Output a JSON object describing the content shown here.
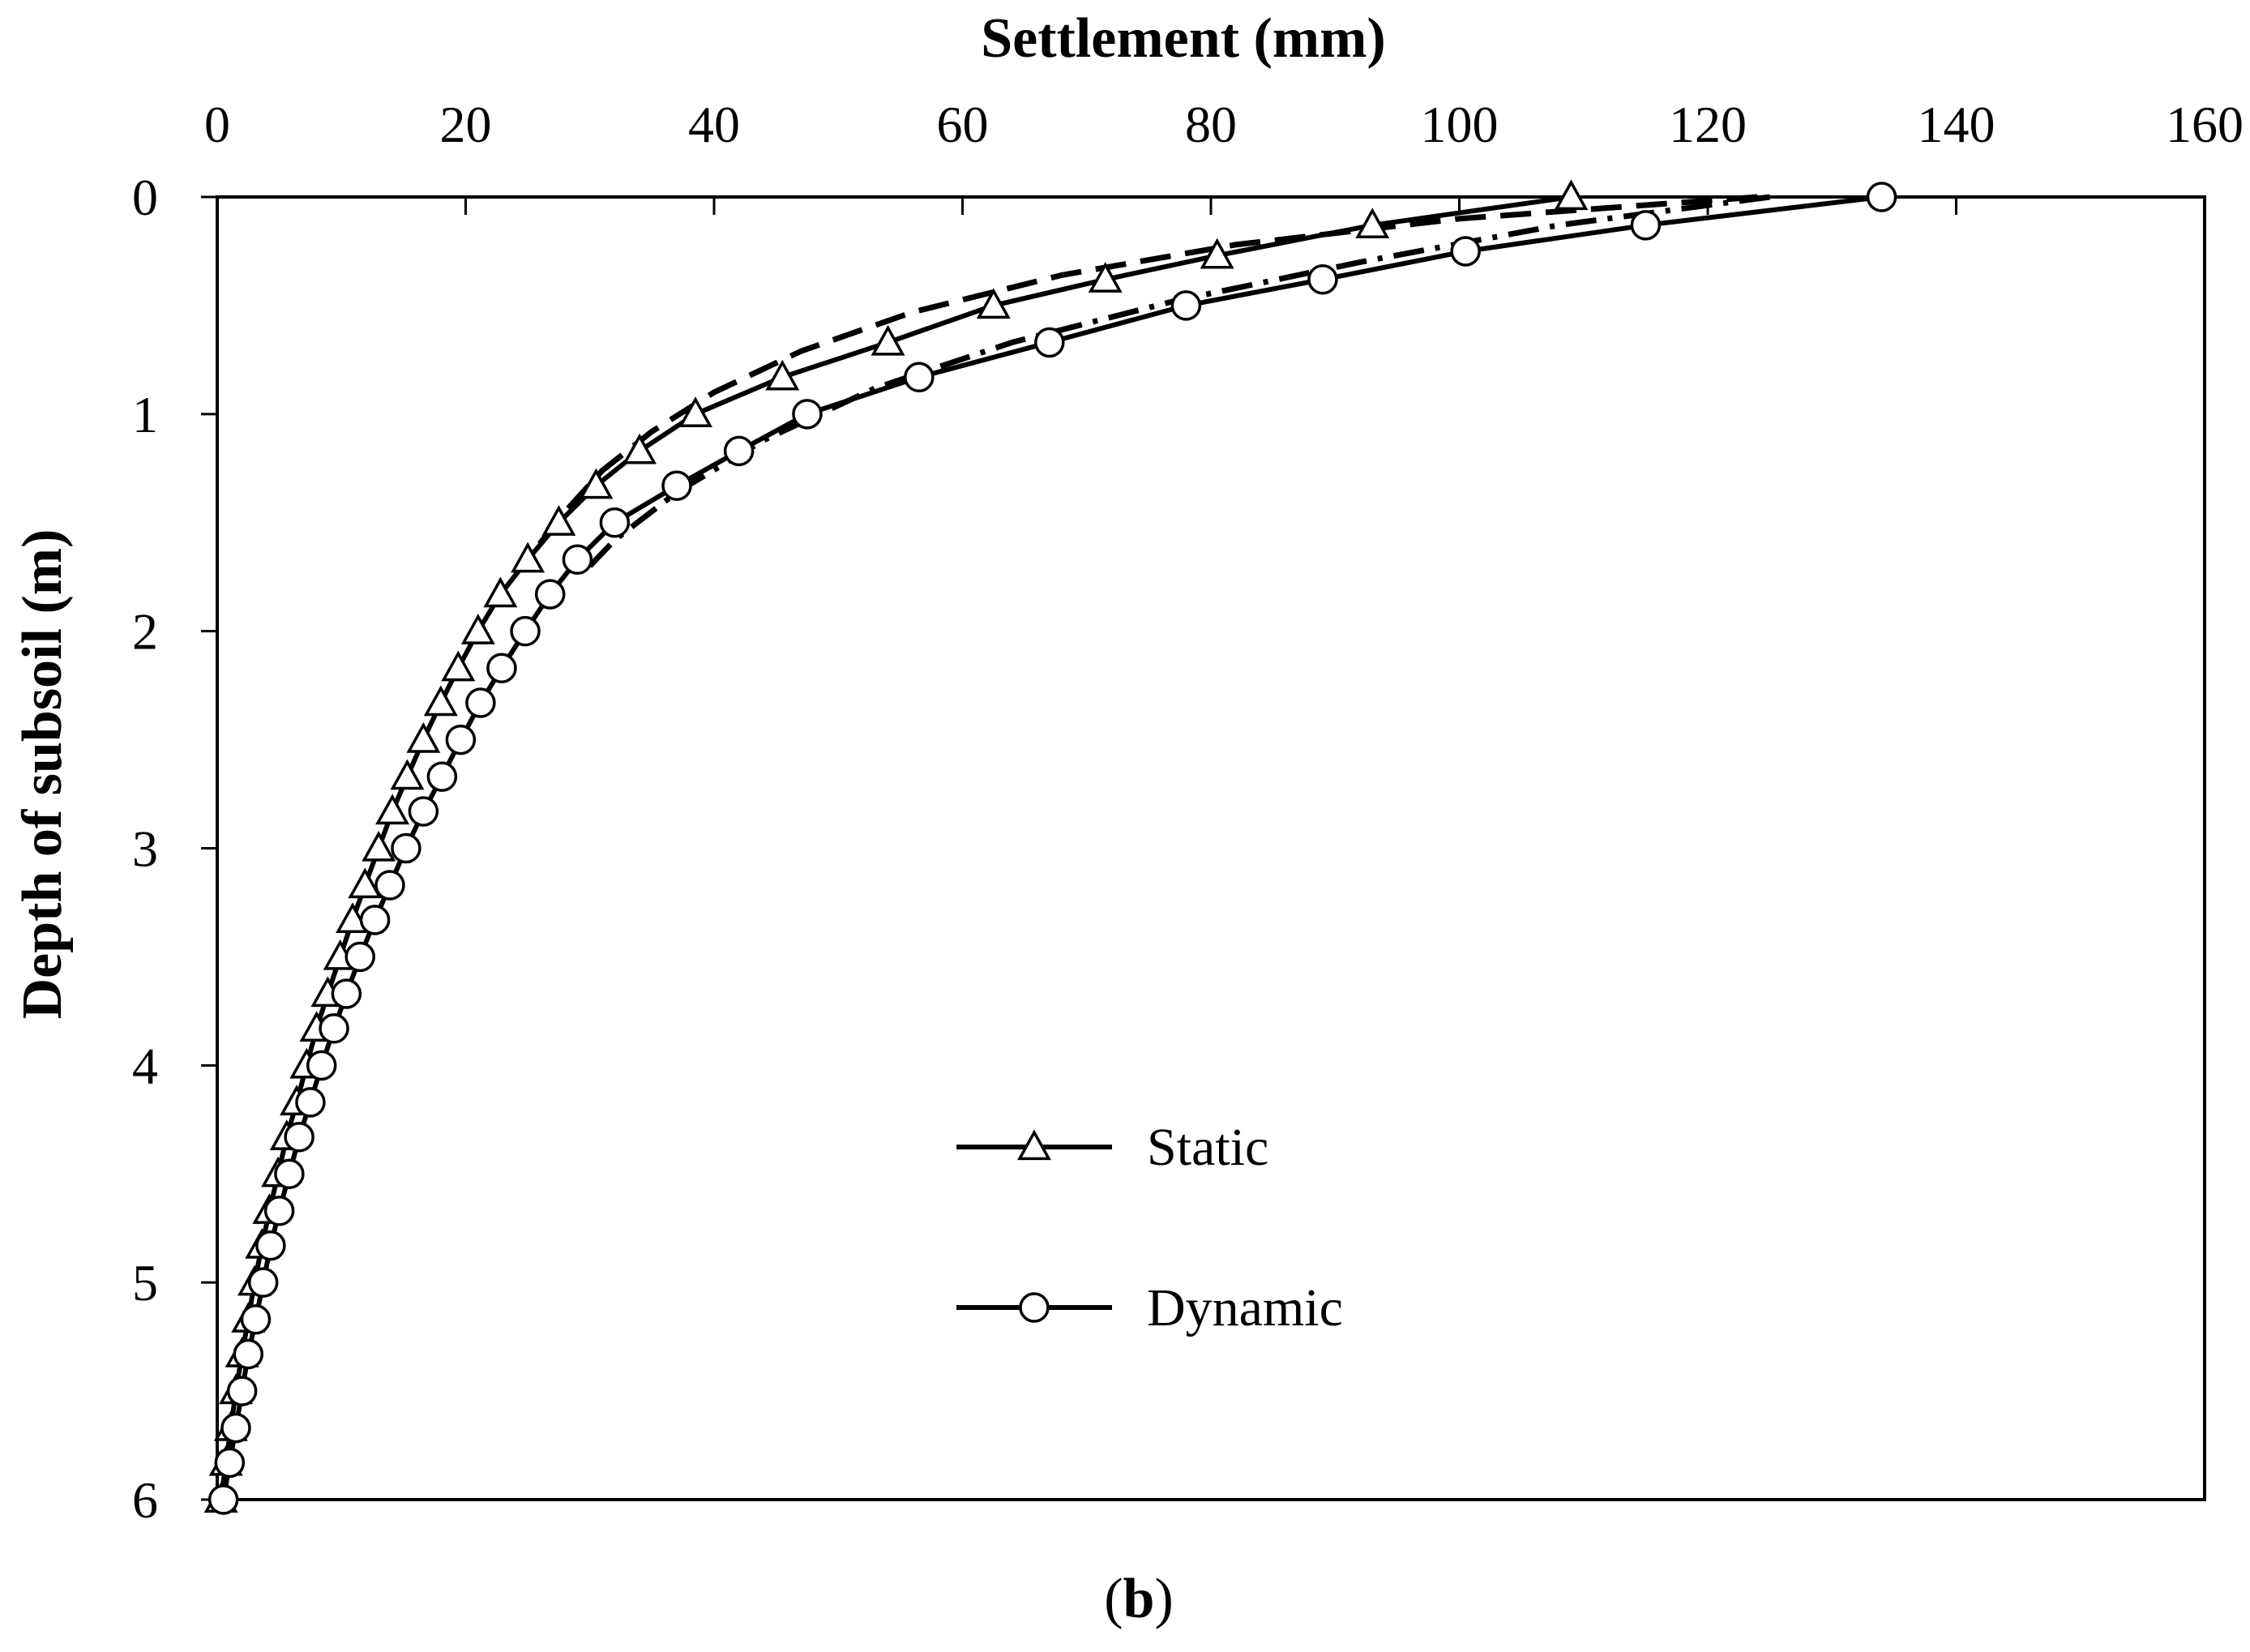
{
  "chart_data": {
    "type": "line",
    "title": "Settlement (mm)",
    "xlabel": "Settlement (mm)",
    "ylabel": "Depth of subsoil (m)",
    "caption_prefix": "(",
    "caption_letter": "b",
    "caption_suffix": ")",
    "xlim": [
      0,
      160
    ],
    "ylim": [
      0,
      6
    ],
    "x_ticks": [
      0,
      20,
      40,
      60,
      80,
      100,
      120,
      140,
      160
    ],
    "y_ticks": [
      0,
      1,
      2,
      3,
      4,
      5,
      6
    ],
    "x_axis_position": "top",
    "y_axis_inverted": true,
    "legend_position": "center",
    "series": [
      {
        "name": "Static",
        "marker": "triangle",
        "points": [
          [
            109,
            0.0
          ],
          [
            93,
            0.13
          ],
          [
            80.5,
            0.27
          ],
          [
            71.5,
            0.38
          ],
          [
            62.5,
            0.5
          ],
          [
            54,
            0.67
          ],
          [
            45.5,
            0.83
          ],
          [
            38.5,
            1.0
          ],
          [
            34,
            1.17
          ],
          [
            30.5,
            1.33
          ],
          [
            27.5,
            1.5
          ],
          [
            25,
            1.67
          ],
          [
            22.8,
            1.83
          ],
          [
            21,
            2.0
          ],
          [
            19.4,
            2.17
          ],
          [
            18,
            2.33
          ],
          [
            16.6,
            2.5
          ],
          [
            15.3,
            2.67
          ],
          [
            14.1,
            2.83
          ],
          [
            13,
            3.0
          ],
          [
            11.9,
            3.17
          ],
          [
            10.9,
            3.33
          ],
          [
            9.9,
            3.5
          ],
          [
            8.9,
            3.67
          ],
          [
            8.0,
            3.83
          ],
          [
            7.2,
            4.0
          ],
          [
            6.4,
            4.17
          ],
          [
            5.6,
            4.33
          ],
          [
            4.9,
            4.5
          ],
          [
            4.2,
            4.67
          ],
          [
            3.6,
            4.83
          ],
          [
            3.0,
            5.0
          ],
          [
            2.5,
            5.17
          ],
          [
            2.0,
            5.33
          ],
          [
            1.5,
            5.5
          ],
          [
            1.1,
            5.67
          ],
          [
            0.7,
            5.83
          ],
          [
            0.3,
            6.0
          ]
        ],
        "dashed_companion": [
          [
            124,
            0.0
          ],
          [
            100,
            0.1
          ],
          [
            82,
            0.22
          ],
          [
            68,
            0.36
          ],
          [
            56,
            0.53
          ],
          [
            47,
            0.71
          ],
          [
            40,
            0.9
          ],
          [
            35,
            1.08
          ],
          [
            31,
            1.26
          ],
          [
            28,
            1.45
          ],
          [
            25.5,
            1.63
          ]
        ]
      },
      {
        "name": "Dynamic",
        "marker": "circle",
        "points": [
          [
            134,
            0.0
          ],
          [
            115,
            0.13
          ],
          [
            100.5,
            0.25
          ],
          [
            89,
            0.38
          ],
          [
            78,
            0.5
          ],
          [
            67,
            0.67
          ],
          [
            56.5,
            0.83
          ],
          [
            47.5,
            1.0
          ],
          [
            42,
            1.17
          ],
          [
            37,
            1.33
          ],
          [
            32,
            1.5
          ],
          [
            29,
            1.67
          ],
          [
            26.8,
            1.83
          ],
          [
            24.8,
            2.0
          ],
          [
            22.9,
            2.17
          ],
          [
            21.2,
            2.33
          ],
          [
            19.6,
            2.5
          ],
          [
            18.1,
            2.67
          ],
          [
            16.6,
            2.83
          ],
          [
            15.2,
            3.0
          ],
          [
            13.9,
            3.17
          ],
          [
            12.7,
            3.33
          ],
          [
            11.5,
            3.5
          ],
          [
            10.4,
            3.67
          ],
          [
            9.4,
            3.83
          ],
          [
            8.4,
            4.0
          ],
          [
            7.5,
            4.17
          ],
          [
            6.6,
            4.33
          ],
          [
            5.8,
            4.5
          ],
          [
            5.0,
            4.67
          ],
          [
            4.3,
            4.83
          ],
          [
            3.7,
            5.0
          ],
          [
            3.1,
            5.17
          ],
          [
            2.5,
            5.33
          ],
          [
            2.0,
            5.5
          ],
          [
            1.5,
            5.67
          ],
          [
            1.0,
            5.83
          ],
          [
            0.5,
            6.0
          ]
        ],
        "dashed_companion": [
          [
            125,
            0.0
          ],
          [
            108,
            0.13
          ],
          [
            92,
            0.3
          ],
          [
            77,
            0.48
          ],
          [
            64,
            0.67
          ],
          [
            53,
            0.88
          ],
          [
            44,
            1.12
          ],
          [
            37,
            1.36
          ],
          [
            32,
            1.58
          ],
          [
            30,
            1.7
          ]
        ]
      }
    ]
  }
}
